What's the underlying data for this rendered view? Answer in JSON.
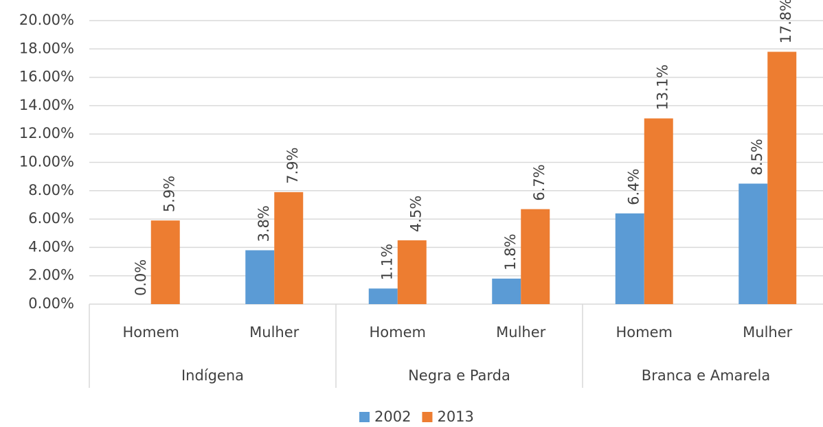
{
  "chart_data": {
    "type": "bar",
    "categories": [
      "Homem",
      "Mulher",
      "Homem",
      "Mulher",
      "Homem",
      "Mulher"
    ],
    "groups": [
      "Indígena",
      "Negra e Parda",
      "Branca e Amarela"
    ],
    "series": [
      {
        "name": "2002",
        "color": "#5b9bd5",
        "values": [
          0.0,
          3.8,
          1.1,
          1.8,
          6.4,
          8.5
        ],
        "value_labels": [
          "0.0%",
          "3.8%",
          "1.1%",
          "1.8%",
          "6.4%",
          "8.5%"
        ]
      },
      {
        "name": "2013",
        "color": "#ed7d31",
        "values": [
          5.9,
          7.9,
          4.5,
          6.7,
          13.1,
          17.8
        ],
        "value_labels": [
          "5.9%",
          "7.9%",
          "4.5%",
          "6.7%",
          "13.1%",
          "17.8%"
        ]
      }
    ],
    "ylim": [
      0,
      20
    ],
    "yticks": [
      {
        "value": 0,
        "label": "0.00%"
      },
      {
        "value": 2,
        "label": "2.00%"
      },
      {
        "value": 4,
        "label": "4.00%"
      },
      {
        "value": 6,
        "label": "6.00%"
      },
      {
        "value": 8,
        "label": "8.00%"
      },
      {
        "value": 10,
        "label": "10.00%"
      },
      {
        "value": 12,
        "label": "12.00%"
      },
      {
        "value": 14,
        "label": "14.00%"
      },
      {
        "value": 16,
        "label": "16.00%"
      },
      {
        "value": 18,
        "label": "18.00%"
      },
      {
        "value": 20,
        "label": "20.00%"
      }
    ],
    "grid": true,
    "legend": "bottom"
  }
}
